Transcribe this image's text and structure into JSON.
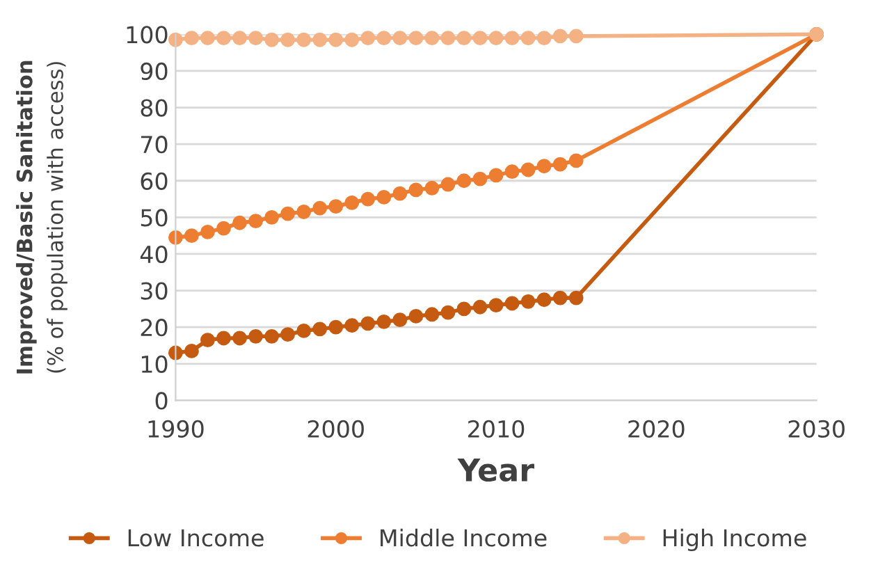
{
  "chart_data": {
    "type": "line",
    "xlabel": "Year",
    "ylabel": "Improved/Basic Sanitation\n(% of population with access)",
    "xlim": [
      1990,
      2030
    ],
    "xticks": [
      1990,
      2000,
      2010,
      2020,
      2030
    ],
    "ylim": [
      0,
      100
    ],
    "yticks": [
      0,
      10,
      20,
      30,
      40,
      50,
      60,
      70,
      80,
      90,
      100
    ],
    "x": [
      1990,
      1991,
      1992,
      1993,
      1994,
      1995,
      1996,
      1997,
      1998,
      1999,
      2000,
      2001,
      2002,
      2003,
      2004,
      2005,
      2006,
      2007,
      2008,
      2009,
      2010,
      2011,
      2012,
      2013,
      2014,
      2015,
      2030
    ],
    "grid": "y",
    "legend": "bottom",
    "marker": "circle",
    "line_style": "solid",
    "series": [
      {
        "name": "Low Income",
        "color": "#c55a11",
        "values": [
          13,
          13.5,
          16.5,
          17,
          17,
          17.5,
          17.5,
          18,
          19,
          19.5,
          20,
          20.5,
          21,
          21.5,
          22,
          23,
          23.5,
          24,
          25,
          25.5,
          26,
          26.5,
          27,
          27.5,
          28,
          28,
          100
        ]
      },
      {
        "name": "Middle Income",
        "color": "#ed7d31",
        "values": [
          44.5,
          45,
          46,
          47,
          48.5,
          49,
          50,
          51,
          51.5,
          52.5,
          53,
          54,
          55,
          55.5,
          56.5,
          57.5,
          58,
          59,
          60,
          60.5,
          61.5,
          62.5,
          63,
          64,
          64.5,
          65.5,
          100
        ]
      },
      {
        "name": "High Income",
        "color": "#f4b183",
        "values": [
          98.5,
          99,
          99,
          99,
          99,
          99,
          98.5,
          98.5,
          98.5,
          98.5,
          98.5,
          98.5,
          99,
          99,
          99,
          99,
          99,
          99,
          99,
          99,
          99,
          99,
          99,
          99,
          99.5,
          99.5,
          100
        ]
      }
    ]
  }
}
